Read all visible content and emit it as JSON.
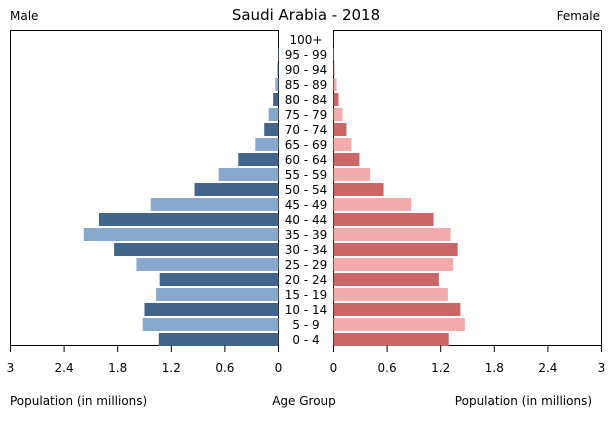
{
  "chart_data": {
    "type": "bar",
    "subtype": "population-pyramid",
    "title": "Saudi Arabia - 2018",
    "left_label": "Male",
    "right_label": "Female",
    "xlabel_left": "Population (in millions)",
    "xlabel_center": "Age Group",
    "xlabel_right": "Population (in millions)",
    "xlim": [
      0,
      3
    ],
    "left_ticks": [
      "3",
      "2.4",
      "1.8",
      "1.2",
      "0.6",
      "0"
    ],
    "right_ticks": [
      "0",
      "0.6",
      "1.2",
      "1.8",
      "2.4",
      "3"
    ],
    "tick_values": [
      0,
      0.6,
      1.2,
      1.8,
      2.4,
      3
    ],
    "categories": [
      "0 - 4",
      "5 - 9",
      "10 - 14",
      "15 - 19",
      "20 - 24",
      "25 - 29",
      "30 - 34",
      "35 - 39",
      "40 - 44",
      "45 - 49",
      "50 - 54",
      "55 - 59",
      "60 - 64",
      "65 - 69",
      "70 - 74",
      "75 - 79",
      "80 - 84",
      "85 - 89",
      "90 - 94",
      "95 - 99",
      "100+"
    ],
    "series": [
      {
        "name": "Male",
        "values": [
          1.34,
          1.52,
          1.5,
          1.37,
          1.33,
          1.59,
          1.84,
          2.18,
          2.01,
          1.43,
          0.94,
          0.67,
          0.45,
          0.26,
          0.16,
          0.11,
          0.06,
          0.035,
          0.01,
          0.005,
          0.002
        ]
      },
      {
        "name": "Female",
        "values": [
          1.29,
          1.47,
          1.42,
          1.28,
          1.18,
          1.34,
          1.39,
          1.31,
          1.12,
          0.87,
          0.56,
          0.41,
          0.29,
          0.2,
          0.145,
          0.1,
          0.056,
          0.034,
          0.01,
          0.005,
          0.002
        ]
      }
    ],
    "colors": {
      "male_dark": "#436589",
      "male_light": "#88a9cc",
      "female_dark": "#c96767",
      "female_light": "#f2aaaa"
    }
  }
}
